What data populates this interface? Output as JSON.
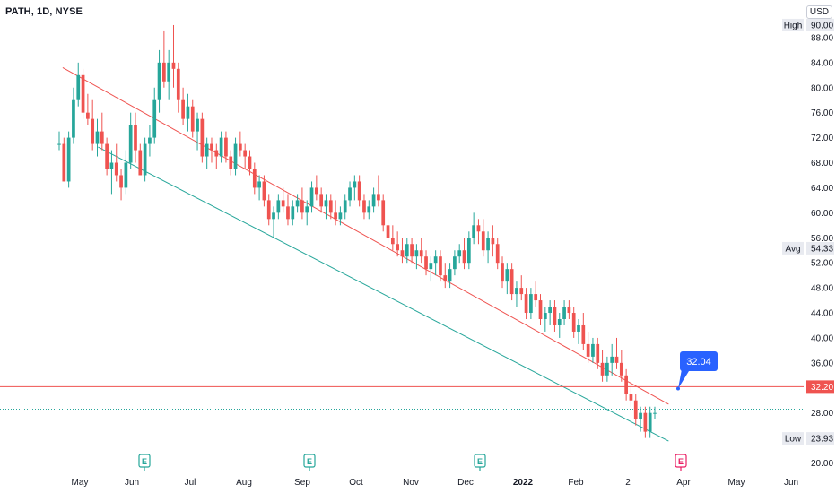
{
  "header": {
    "symbol": "PATH, 1D, NYSE",
    "currency": "USD"
  },
  "chart_data": {
    "type": "candlestick",
    "ylim": [
      18.5,
      92
    ],
    "y_ticks": [
      20,
      24,
      28,
      32,
      36,
      40,
      44,
      48,
      52,
      56,
      60,
      64,
      68,
      72,
      76,
      80,
      84,
      88
    ],
    "x_labels": [
      "May",
      "Jun",
      "Jul",
      "Aug",
      "Sep",
      "Oct",
      "Nov",
      "Dec",
      "2022",
      "Feb",
      "2",
      "Apr",
      "May",
      "Jun"
    ],
    "up_color": "#26a69a",
    "down_color": "#ef5350",
    "annotations": {
      "high": {
        "label": "High",
        "value": 90.0,
        "text": "90.00"
      },
      "avg": {
        "label": "Avg",
        "value": 54.33,
        "text": "54.33"
      },
      "low": {
        "label": "Low",
        "value": 23.93,
        "text": "23.93"
      },
      "hline": {
        "value": 32.2,
        "text": "32.20",
        "color": "#ef5350"
      },
      "last": {
        "value": 28.6,
        "color": "#26a69a"
      },
      "callout": {
        "text": "32.04",
        "value": 32.04,
        "color": "#2962ff"
      }
    },
    "channel": {
      "upper": {
        "color": "#ef5350",
        "from": {
          "date": "2021-04-22",
          "value": 83.2
        },
        "to": {
          "date": "2022-03-30",
          "value": 29.4
        }
      },
      "lower": {
        "color": "#26a69a",
        "from": {
          "date": "2021-05-12",
          "value": 70.5
        },
        "to": {
          "date": "2022-03-30",
          "value": 23.5
        }
      }
    },
    "earnings_markers": [
      {
        "label": "E",
        "color": "#26a69a"
      },
      {
        "label": "E",
        "color": "#26a69a"
      },
      {
        "label": "E",
        "color": "#26a69a"
      },
      {
        "label": "E",
        "color": "#e91e63"
      }
    ],
    "ohlc": [
      [
        71,
        73,
        70,
        71
      ],
      [
        71,
        72,
        65,
        65
      ],
      [
        65,
        73,
        64,
        72
      ],
      [
        72,
        80,
        71,
        78
      ],
      [
        78,
        84,
        77,
        82
      ],
      [
        82,
        83,
        75,
        76
      ],
      [
        76,
        79,
        74,
        75
      ],
      [
        75,
        78,
        70,
        71
      ],
      [
        71,
        75,
        69,
        73
      ],
      [
        73,
        76,
        70,
        71
      ],
      [
        71,
        72,
        66,
        67
      ],
      [
        67,
        70,
        63,
        68
      ],
      [
        68,
        71,
        65,
        66
      ],
      [
        66,
        67,
        62,
        64
      ],
      [
        64,
        70,
        63,
        68
      ],
      [
        68,
        76,
        67,
        74
      ],
      [
        74,
        76,
        68,
        70
      ],
      [
        70,
        71,
        66,
        66
      ],
      [
        66,
        72,
        65,
        71
      ],
      [
        71,
        74,
        69,
        72
      ],
      [
        72,
        80,
        71,
        78
      ],
      [
        78,
        86,
        76,
        84
      ],
      [
        84,
        89,
        80,
        81
      ],
      [
        81,
        86,
        78,
        84
      ],
      [
        84,
        90,
        80,
        83
      ],
      [
        83,
        84,
        76,
        78
      ],
      [
        78,
        80,
        74,
        75
      ],
      [
        75,
        79,
        73,
        77
      ],
      [
        77,
        78,
        72,
        73
      ],
      [
        73,
        76,
        70,
        75
      ],
      [
        75,
        76,
        68,
        69
      ],
      [
        69,
        72,
        67,
        71
      ],
      [
        71,
        72,
        68,
        70
      ],
      [
        70,
        71,
        67,
        69
      ],
      [
        69,
        73,
        68,
        72
      ],
      [
        72,
        73,
        68,
        69
      ],
      [
        69,
        70,
        66,
        67
      ],
      [
        67,
        72,
        66,
        71
      ],
      [
        71,
        73,
        69,
        70
      ],
      [
        70,
        71,
        67,
        69
      ],
      [
        69,
        70,
        66,
        67
      ],
      [
        67,
        68,
        63,
        64
      ],
      [
        64,
        66,
        62,
        65
      ],
      [
        65,
        66,
        61,
        62
      ],
      [
        62,
        63,
        58,
        59
      ],
      [
        59,
        61,
        56,
        60
      ],
      [
        60,
        63,
        59,
        62
      ],
      [
        62,
        64,
        60,
        61
      ],
      [
        61,
        63,
        58,
        59
      ],
      [
        59,
        62,
        58,
        61
      ],
      [
        61,
        63,
        60,
        62
      ],
      [
        62,
        64,
        59,
        60
      ],
      [
        60,
        62,
        58,
        61
      ],
      [
        61,
        65,
        60,
        64
      ],
      [
        64,
        66,
        62,
        63
      ],
      [
        63,
        64,
        60,
        61
      ],
      [
        61,
        63,
        59,
        62
      ],
      [
        62,
        63,
        59,
        60
      ],
      [
        60,
        62,
        58,
        59
      ],
      [
        59,
        61,
        58,
        60
      ],
      [
        60,
        63,
        59,
        62
      ],
      [
        62,
        65,
        61,
        64
      ],
      [
        64,
        66,
        62,
        65
      ],
      [
        65,
        66,
        61,
        62
      ],
      [
        62,
        63,
        59,
        60
      ],
      [
        60,
        62,
        59,
        61
      ],
      [
        61,
        64,
        60,
        63
      ],
      [
        63,
        66,
        61,
        62
      ],
      [
        62,
        63,
        57,
        58
      ],
      [
        58,
        59,
        55,
        56
      ],
      [
        56,
        58,
        54,
        55
      ],
      [
        55,
        57,
        53,
        54
      ],
      [
        54,
        56,
        52,
        53
      ],
      [
        53,
        56,
        52,
        55
      ],
      [
        55,
        56,
        52,
        53
      ],
      [
        53,
        55,
        51,
        54
      ],
      [
        54,
        56,
        52,
        53
      ],
      [
        53,
        54,
        50,
        51
      ],
      [
        51,
        53,
        49,
        52
      ],
      [
        52,
        54,
        50,
        53
      ],
      [
        53,
        54,
        49,
        50
      ],
      [
        50,
        52,
        48,
        49
      ],
      [
        49,
        52,
        48,
        51
      ],
      [
        51,
        54,
        50,
        53
      ],
      [
        53,
        55,
        52,
        54
      ],
      [
        54,
        56,
        51,
        52
      ],
      [
        52,
        57,
        51,
        56
      ],
      [
        56,
        60,
        55,
        58
      ],
      [
        58,
        59,
        55,
        57
      ],
      [
        57,
        59,
        53,
        54
      ],
      [
        54,
        57,
        52,
        56
      ],
      [
        56,
        58,
        53,
        55
      ],
      [
        55,
        56,
        51,
        52
      ],
      [
        52,
        53,
        48,
        49
      ],
      [
        49,
        52,
        47,
        51
      ],
      [
        51,
        52,
        46,
        47
      ],
      [
        47,
        49,
        45,
        48
      ],
      [
        48,
        50,
        46,
        47
      ],
      [
        47,
        48,
        43,
        44
      ],
      [
        44,
        48,
        43,
        47
      ],
      [
        47,
        49,
        45,
        46
      ],
      [
        46,
        47,
        42,
        43
      ],
      [
        43,
        45,
        41,
        44
      ],
      [
        44,
        46,
        42,
        45
      ],
      [
        45,
        46,
        41,
        42
      ],
      [
        42,
        44,
        40,
        43
      ],
      [
        43,
        46,
        42,
        45
      ],
      [
        45,
        46,
        43,
        44
      ],
      [
        44,
        45,
        40,
        41
      ],
      [
        41,
        43,
        39,
        42
      ],
      [
        42,
        44,
        38,
        39
      ],
      [
        39,
        41,
        36,
        37
      ],
      [
        37,
        40,
        36,
        39
      ],
      [
        39,
        40,
        35,
        36
      ],
      [
        36,
        38,
        33,
        34
      ],
      [
        34,
        37,
        33,
        36
      ],
      [
        36,
        39,
        34,
        37
      ],
      [
        37,
        40,
        35,
        36
      ],
      [
        36,
        38,
        33,
        34
      ],
      [
        34,
        35,
        30,
        31
      ],
      [
        31,
        33,
        29,
        30
      ],
      [
        30,
        31,
        26,
        27
      ],
      [
        27,
        29,
        25,
        28
      ],
      [
        28,
        29,
        24,
        25
      ],
      [
        25,
        29,
        24,
        28
      ],
      [
        28,
        29,
        27,
        28
      ]
    ]
  }
}
